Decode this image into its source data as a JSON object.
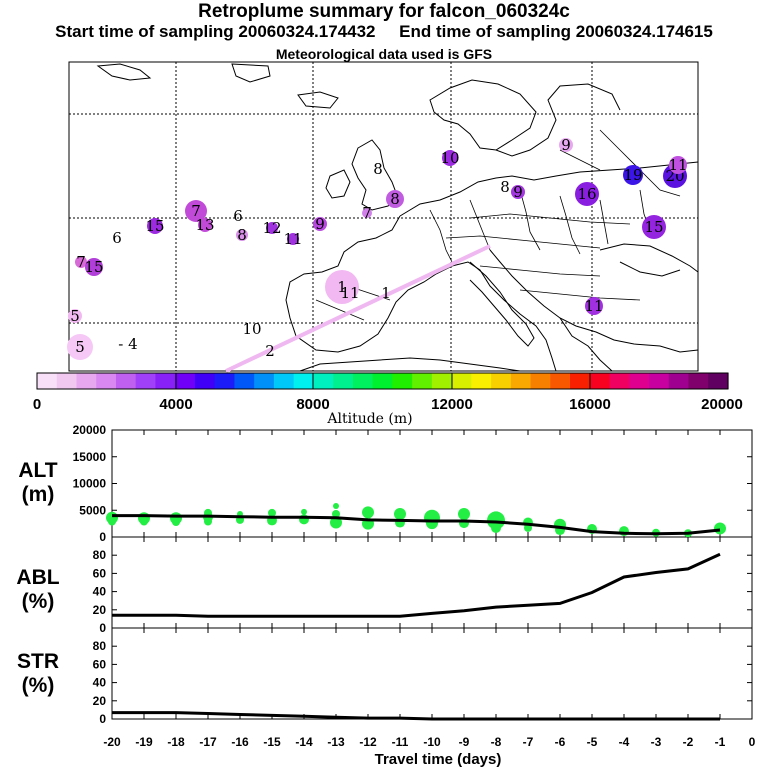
{
  "header": {
    "title": "Retroplume summary for falcon_060324c",
    "start_label": "Start time of sampling 20060324.174432",
    "end_label": "End time of sampling 20060324.174615",
    "met_label": "Meteorological data used is GFS"
  },
  "map": {
    "labels": [
      {
        "text": "1",
        "color": "#f2b8f2"
      },
      {
        "text": "11",
        "color": "#eaa8ea"
      },
      {
        "text": "1",
        "color": null
      },
      {
        "text": "10",
        "color": null
      },
      {
        "text": "2",
        "color": null
      },
      {
        "text": "5",
        "color": "#f2b8f2"
      },
      {
        "text": "- 4",
        "color": null
      },
      {
        "text": "5",
        "color": "#f5c8f5"
      },
      {
        "text": "7",
        "color": "#d86ad8"
      },
      {
        "text": "15",
        "color": "#b13ed8"
      },
      {
        "text": "6",
        "color": null
      },
      {
        "text": "15",
        "color": "#9b2ae0"
      },
      {
        "text": "7",
        "color": "#c24ad8"
      },
      {
        "text": "13",
        "color": "#c24ad8"
      },
      {
        "text": "6",
        "color": null
      },
      {
        "text": "8",
        "color": "#d890e8"
      },
      {
        "text": "12",
        "color": "#a032e0"
      },
      {
        "text": "11",
        "color": "#a032e0"
      },
      {
        "text": "9",
        "color": "#b848e0"
      },
      {
        "text": "7",
        "color": "#d080e8"
      },
      {
        "text": "8",
        "color": "#c05ce0"
      },
      {
        "text": "8",
        "color": null
      },
      {
        "text": "10",
        "color": "#9b2ae0"
      },
      {
        "text": "8",
        "color": null
      },
      {
        "text": "9",
        "color": "#a438e0"
      },
      {
        "text": "16",
        "color": "#8a1ee0"
      },
      {
        "text": "9",
        "color": "#e8a8f0"
      },
      {
        "text": "19",
        "color": "#3b14e8"
      },
      {
        "text": "20",
        "color": "#5a12e0"
      },
      {
        "text": "11",
        "color": "#c050e0"
      },
      {
        "text": "15",
        "color": "#9424e0"
      },
      {
        "text": "11",
        "color": "#a030e0"
      }
    ]
  },
  "colorbar": {
    "colors": [
      "#f8e0f8",
      "#f0c8f0",
      "#e8a8f0",
      "#d888f0",
      "#c060f0",
      "#a040f8",
      "#8820f8",
      "#7000f8",
      "#4000f8",
      "#1c1cf8",
      "#0058f8",
      "#0090f8",
      "#00c8f8",
      "#00f0f0",
      "#00f0c0",
      "#00f090",
      "#00f060",
      "#00f030",
      "#20f000",
      "#60f000",
      "#a0f000",
      "#d8f000",
      "#f8f000",
      "#f8d000",
      "#f8a800",
      "#f88000",
      "#f85800",
      "#f82000",
      "#f80020",
      "#f00060",
      "#e00090",
      "#c800a0",
      "#a00090",
      "#80006c",
      "#600060"
    ],
    "ticks": [
      "0",
      "4000",
      "8000",
      "12000",
      "16000",
      "20000"
    ],
    "label": "Altitude (m)"
  },
  "chart_data": [
    {
      "type": "scatter",
      "title": "ALT (m)",
      "ylabel": "ALT (m)",
      "xlabel": "Travel time (days)",
      "ylim": [
        0,
        20000
      ],
      "yticks": [
        0,
        5000,
        10000,
        15000,
        20000
      ],
      "line": {
        "name": "mean altitude",
        "x": [
          -20,
          -19,
          -18,
          -17,
          -16,
          -15,
          -14,
          -13,
          -12,
          -11,
          -10,
          -9,
          -8,
          -7,
          -6,
          -5,
          -4,
          -3,
          -2,
          -1
        ],
        "y": [
          4000,
          4000,
          3900,
          3900,
          3800,
          3700,
          3700,
          3600,
          3200,
          3100,
          3000,
          3000,
          2800,
          2400,
          1800,
          1000,
          700,
          600,
          700,
          1300
        ]
      },
      "points": [
        {
          "x": -20,
          "y": 3600,
          "s": 6
        },
        {
          "x": -20,
          "y": 2900,
          "s": 4
        },
        {
          "x": -19,
          "y": 3500,
          "s": 6
        },
        {
          "x": -19,
          "y": 2900,
          "s": 4
        },
        {
          "x": -18,
          "y": 3500,
          "s": 6
        },
        {
          "x": -18,
          "y": 2800,
          "s": 4
        },
        {
          "x": -17,
          "y": 4500,
          "s": 4
        },
        {
          "x": -17,
          "y": 3700,
          "s": 5
        },
        {
          "x": -17,
          "y": 2900,
          "s": 4
        },
        {
          "x": -16,
          "y": 4300,
          "s": 3
        },
        {
          "x": -16,
          "y": 3200,
          "s": 4
        },
        {
          "x": -15,
          "y": 4500,
          "s": 4
        },
        {
          "x": -15,
          "y": 3100,
          "s": 5
        },
        {
          "x": -14,
          "y": 4700,
          "s": 3
        },
        {
          "x": -14,
          "y": 3300,
          "s": 5
        },
        {
          "x": -13,
          "y": 5800,
          "s": 3
        },
        {
          "x": -13,
          "y": 4300,
          "s": 4
        },
        {
          "x": -13,
          "y": 2700,
          "s": 6
        },
        {
          "x": -12,
          "y": 4600,
          "s": 6
        },
        {
          "x": -12,
          "y": 2500,
          "s": 6
        },
        {
          "x": -11,
          "y": 4300,
          "s": 6
        },
        {
          "x": -11,
          "y": 2700,
          "s": 5
        },
        {
          "x": -10,
          "y": 3600,
          "s": 8
        },
        {
          "x": -10,
          "y": 2600,
          "s": 6
        },
        {
          "x": -9,
          "y": 4300,
          "s": 6
        },
        {
          "x": -9,
          "y": 2600,
          "s": 5
        },
        {
          "x": -8,
          "y": 3100,
          "s": 9
        },
        {
          "x": -8,
          "y": 1700,
          "s": 5
        },
        {
          "x": -7,
          "y": 2700,
          "s": 5
        },
        {
          "x": -7,
          "y": 1700,
          "s": 4
        },
        {
          "x": -6,
          "y": 2300,
          "s": 6
        },
        {
          "x": -6,
          "y": 1300,
          "s": 5
        },
        {
          "x": -5,
          "y": 1500,
          "s": 5
        },
        {
          "x": -4,
          "y": 1100,
          "s": 5
        },
        {
          "x": -3,
          "y": 800,
          "s": 4
        },
        {
          "x": -2,
          "y": 700,
          "s": 4
        },
        {
          "x": -1,
          "y": 1600,
          "s": 6
        }
      ]
    },
    {
      "type": "line",
      "title": "ABL (%)",
      "ylabel": "ABL (%)",
      "ylim": [
        0,
        100
      ],
      "yticks": [
        0,
        20,
        40,
        60,
        80
      ],
      "x": [
        -20,
        -19,
        -18,
        -17,
        -16,
        -15,
        -14,
        -13,
        -12,
        -11,
        -10,
        -9,
        -8,
        -7,
        -6,
        -5,
        -4,
        -3,
        -2,
        -1
      ],
      "values": [
        14,
        14,
        14,
        13,
        13,
        13,
        13,
        13,
        13,
        13,
        16,
        19,
        23,
        25,
        27,
        39,
        56,
        61,
        65,
        81
      ]
    },
    {
      "type": "line",
      "title": "STR (%)",
      "ylabel": "STR (%)",
      "ylim": [
        0,
        100
      ],
      "yticks": [
        0,
        20,
        40,
        60,
        80
      ],
      "x": [
        -20,
        -19,
        -18,
        -17,
        -16,
        -15,
        -14,
        -13,
        -12,
        -11,
        -10,
        -9,
        -8,
        -7,
        -6,
        -5,
        -4,
        -3,
        -2,
        -1
      ],
      "values": [
        7,
        7,
        7,
        6,
        5,
        4,
        3,
        2,
        1,
        1,
        0,
        0,
        0,
        0,
        0,
        0,
        0,
        0,
        0,
        0
      ]
    }
  ],
  "xaxis": {
    "ticks": [
      "-20",
      "-19",
      "-18",
      "-17",
      "-16",
      "-15",
      "-14",
      "-13",
      "-12",
      "-11",
      "-10",
      "-9",
      "-8",
      "-7",
      "-6",
      "-5",
      "-4",
      "-3",
      "-2",
      "-1",
      "0"
    ],
    "title": "Travel time (days)"
  },
  "panel_labels": {
    "alt_top": "ALT",
    "alt_bot": "(m)",
    "abl_top": "ABL",
    "abl_bot": "(%)",
    "str_top": "STR",
    "str_bot": "(%)"
  }
}
